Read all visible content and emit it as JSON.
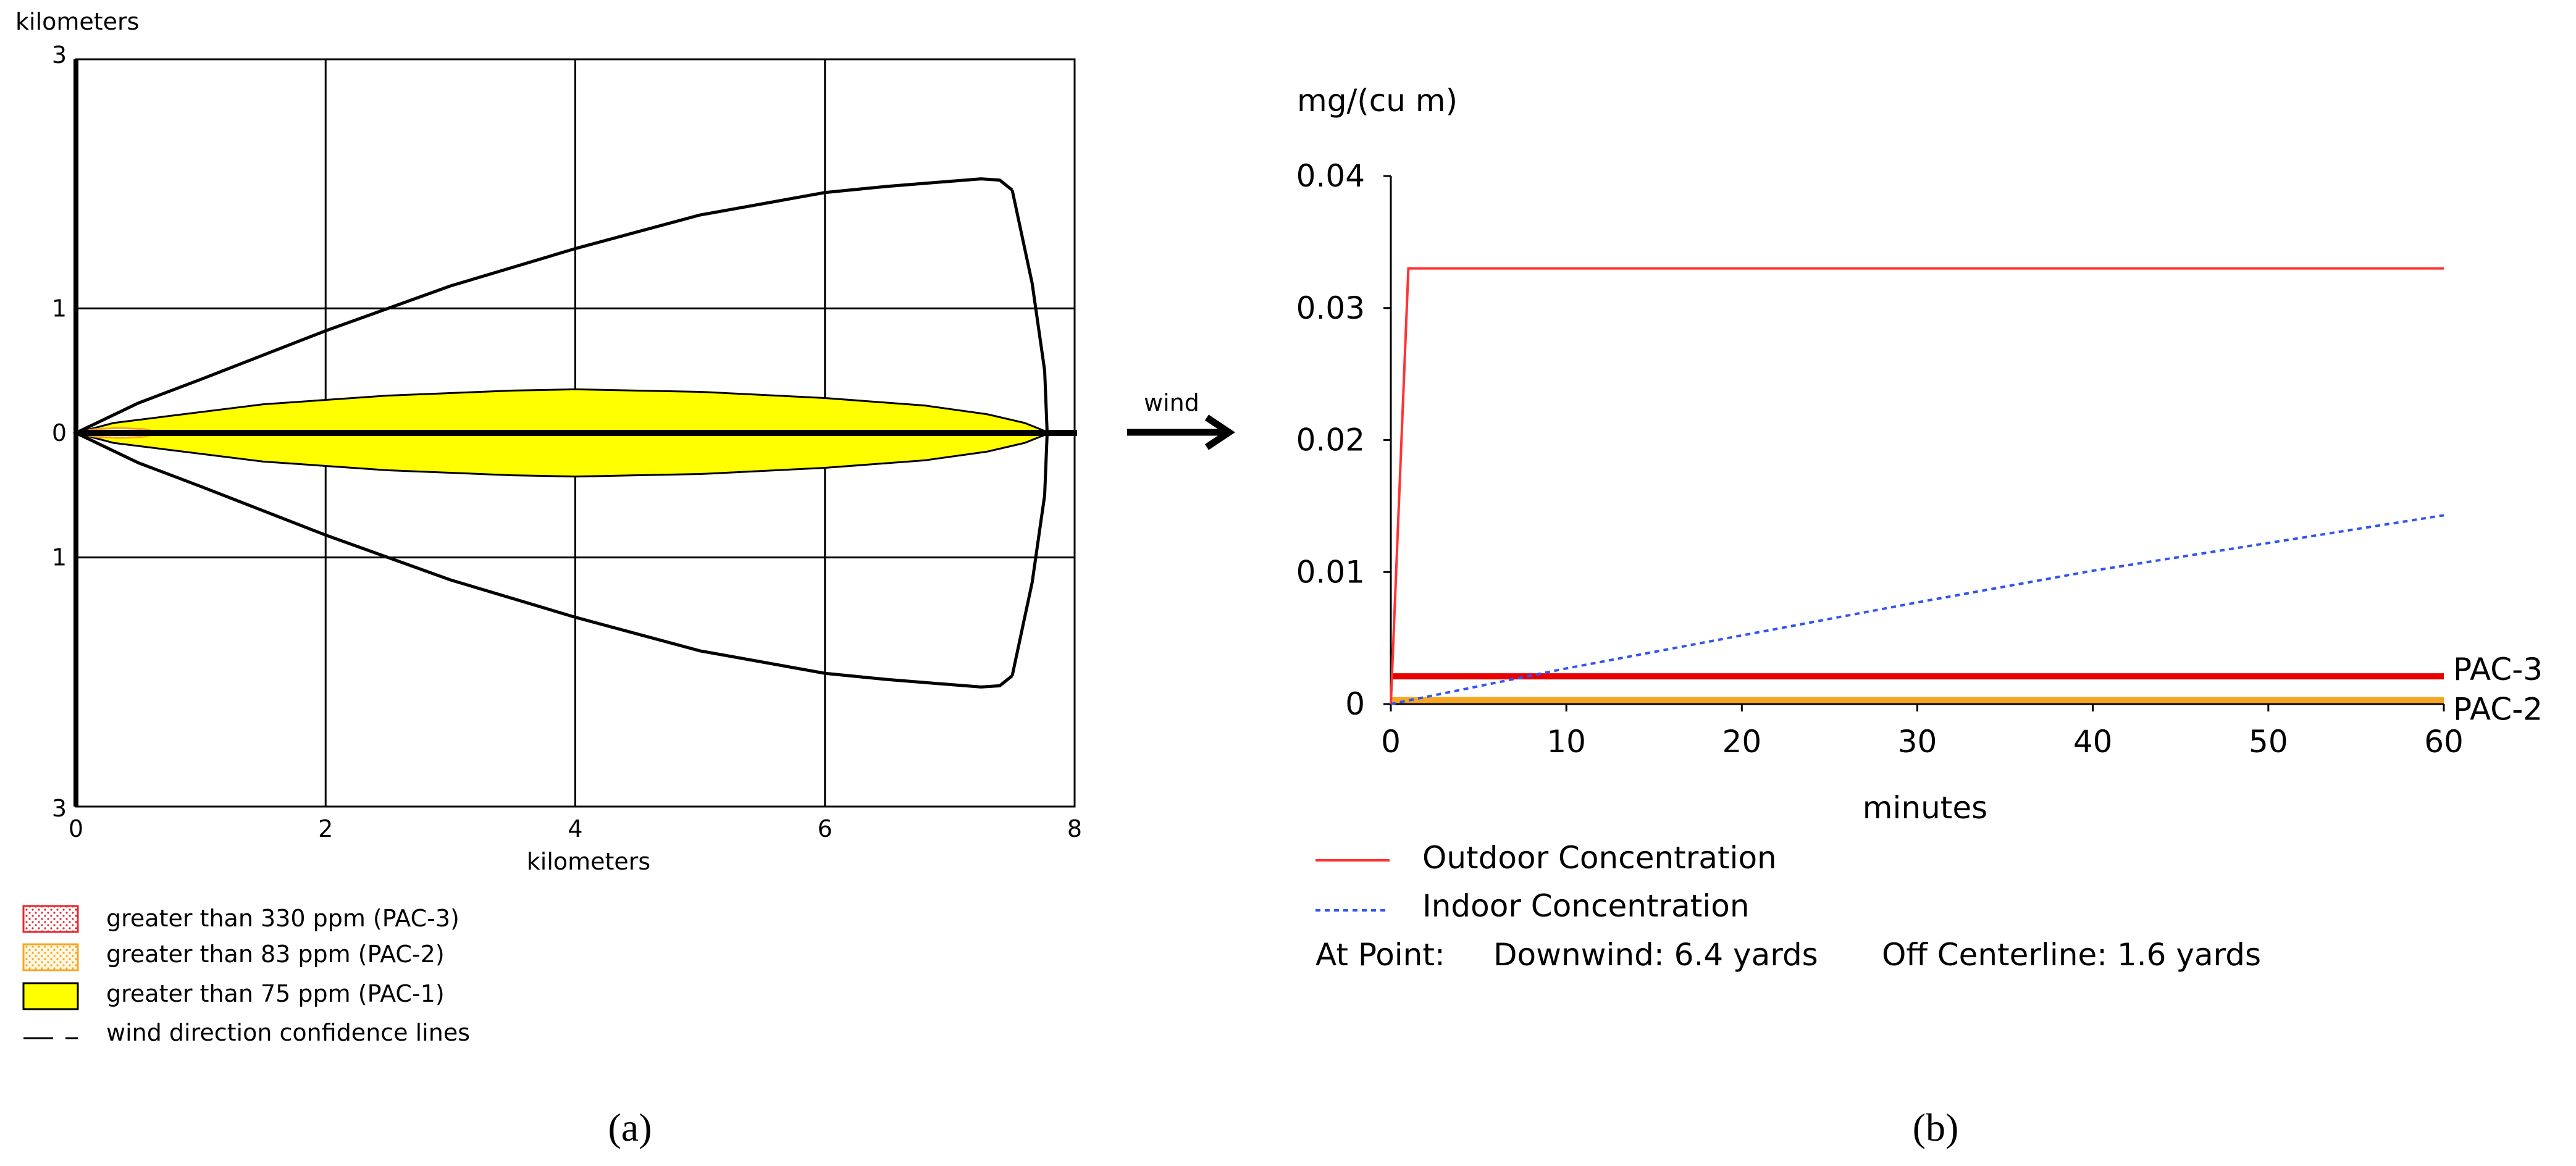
{
  "chart_data": [
    {
      "panel": "(a)",
      "type": "area",
      "xlabel": "kilometers",
      "ylabel": "kilometers",
      "xlim": [
        0,
        8
      ],
      "ylim": [
        -3,
        3
      ],
      "x_ticks": [
        "0",
        "2",
        "4",
        "6",
        "8"
      ],
      "y_ticks": [
        {
          "value": 3,
          "label": "3"
        },
        {
          "value": 1,
          "label": "1"
        },
        {
          "value": 0,
          "label": "0"
        },
        {
          "value": -1,
          "label": "1"
        },
        {
          "value": -3,
          "label": "3"
        }
      ],
      "grid": true,
      "legend_position": "bottom-left",
      "legend": [
        {
          "label": "greater than 330 ppm (PAC-3)",
          "color": "#e8262d",
          "style": "dotted-fill"
        },
        {
          "label": "greater than 83 ppm (PAC-2)",
          "color": "#f5a623",
          "style": "dotted-fill"
        },
        {
          "label": "greater than 75 ppm (PAC-1)",
          "color": "#ffff00",
          "style": "solid-fill"
        },
        {
          "label": "wind direction confidence lines",
          "color": "#000000",
          "style": "dash"
        }
      ],
      "pac1_halfwidth": {
        "x": [
          0,
          0.3,
          0.7,
          1.5,
          2.5,
          3.5,
          4.0,
          5.0,
          6.0,
          6.8,
          7.3,
          7.6,
          7.8
        ],
        "y": [
          0,
          0.08,
          0.13,
          0.23,
          0.3,
          0.34,
          0.35,
          0.33,
          0.28,
          0.22,
          0.15,
          0.08,
          0
        ]
      },
      "pac2_halfwidth": {
        "x": [
          0,
          0.15,
          0.35,
          0.55,
          0.68
        ],
        "y": [
          0,
          0.03,
          0.04,
          0.03,
          0
        ]
      },
      "pac3_halfwidth": {
        "x": [
          0,
          0.1,
          0.2,
          0.25
        ],
        "y": [
          0,
          0.015,
          0.01,
          0
        ]
      },
      "confidence_upper": {
        "x": [
          0,
          0.5,
          1,
          2,
          3,
          4,
          5,
          6,
          6.5,
          7,
          7.25,
          7.4,
          7.5
        ],
        "y": [
          0,
          0.24,
          0.43,
          0.82,
          1.18,
          1.48,
          1.75,
          1.93,
          1.98,
          2.02,
          2.04,
          2.03,
          1.95
        ]
      },
      "confidence_lower": {
        "x": [
          0,
          0.5,
          1,
          2,
          3,
          4,
          5,
          6,
          6.5,
          7,
          7.25,
          7.4,
          7.5
        ],
        "y": [
          0,
          -0.24,
          -0.43,
          -0.82,
          -1.18,
          -1.48,
          -1.75,
          -1.93,
          -1.98,
          -2.02,
          -2.04,
          -2.03,
          -1.95
        ]
      },
      "confidence_arc": {
        "x": [
          7.5,
          7.66,
          7.76,
          7.78,
          7.76,
          7.66,
          7.5
        ],
        "y": [
          1.95,
          1.2,
          0.5,
          0,
          -0.5,
          -1.2,
          -1.95
        ]
      }
    },
    {
      "panel": "(b)",
      "type": "line",
      "ylabel": "mg/(cu m)",
      "xlabel": "minutes",
      "xlim": [
        0,
        60
      ],
      "ylim": [
        0,
        0.04
      ],
      "x_ticks": [
        "0",
        "10",
        "20",
        "30",
        "40",
        "50",
        "60"
      ],
      "y_ticks": [
        "0",
        "0.01",
        "0.02",
        "0.03",
        "0.04"
      ],
      "grid": false,
      "series": [
        {
          "name": "Outdoor Concentration",
          "color": "#ff3333",
          "style": "solid",
          "x": [
            0,
            1,
            60
          ],
          "y": [
            0,
            0.033,
            0.033
          ]
        },
        {
          "name": "Indoor Concentration",
          "color": "#3355ee",
          "style": "dotted",
          "x": [
            0,
            10,
            20,
            30,
            40,
            50,
            60
          ],
          "y": [
            0,
            0.0027,
            0.0052,
            0.0077,
            0.0101,
            0.0122,
            0.0143
          ]
        }
      ],
      "thresholds": [
        {
          "label": "PAC-3",
          "value": 0.0021,
          "color": "#e80000"
        },
        {
          "label": "PAC-2",
          "value": 0.0003,
          "color": "#f5a623"
        }
      ],
      "legend_position": "bottom-left",
      "at_point": {
        "label": "At Point:",
        "downwind": "Downwind: 6.4 yards",
        "off_centerline": "Off Centerline: 1.6 yards"
      }
    }
  ],
  "wind_label": "wind",
  "panel_labels": [
    "(a)",
    "(b)"
  ]
}
